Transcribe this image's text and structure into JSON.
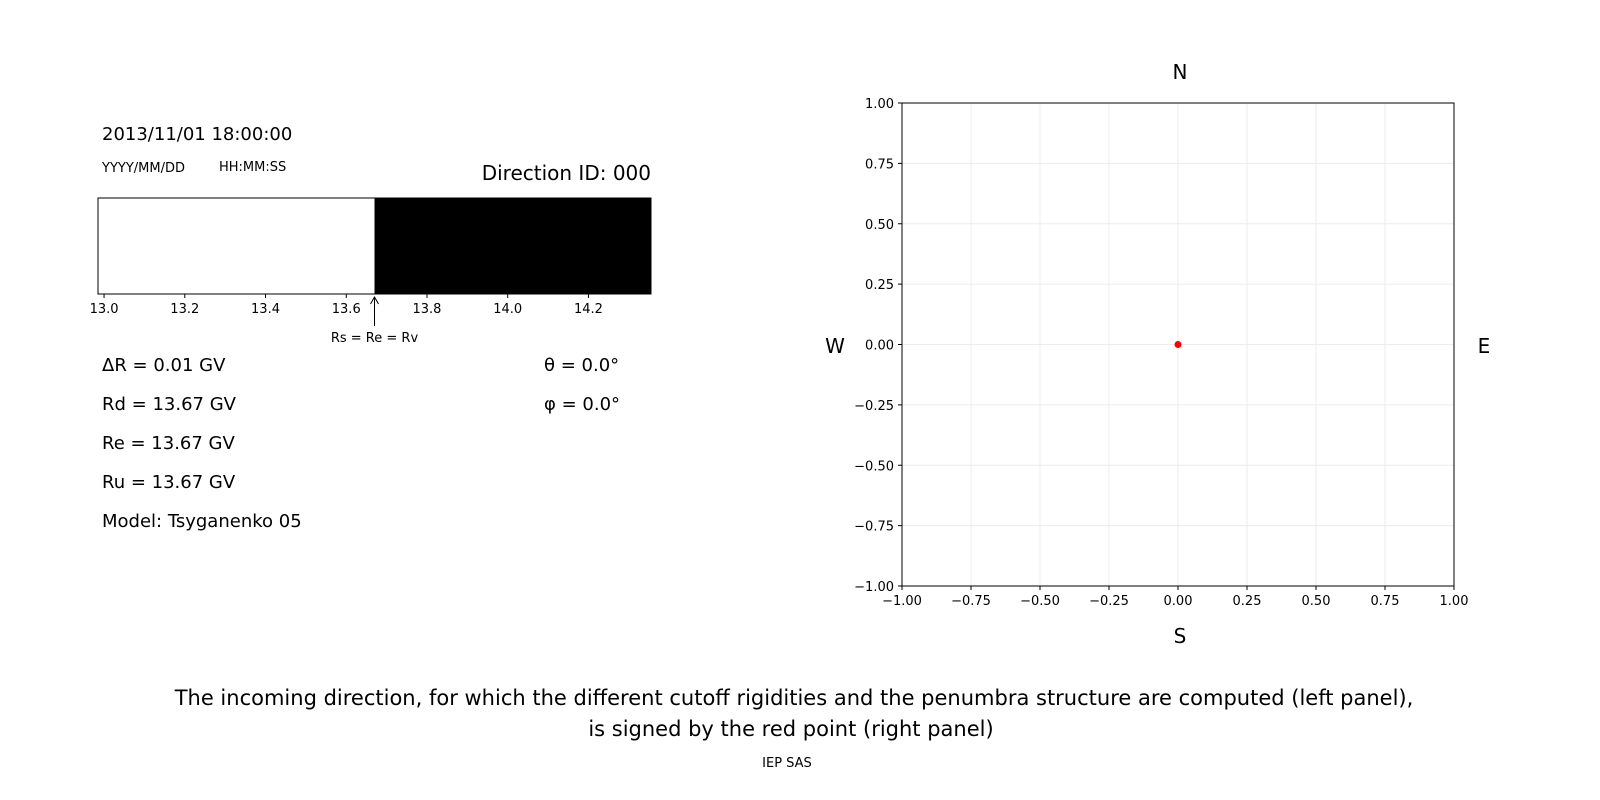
{
  "header": {
    "datetime": "2013/11/01 18:00:00",
    "date_format": "YYYY/MM/DD",
    "time_format": "HH:MM:SS",
    "direction_id": "Direction ID: 000"
  },
  "params": {
    "delta_r": "ΔR = 0.01 GV",
    "rd": "Rd = 13.67 GV",
    "re": "Re = 13.67 GV",
    "ru": "Ru = 13.67 GV",
    "model": "Model: Tsyganenko 05",
    "theta": "θ = 0.0°",
    "phi": "φ = 0.0°"
  },
  "chart_data": [
    {
      "type": "bar",
      "description_kind": "penumbra strip",
      "xlim": [
        12.985,
        14.355
      ],
      "xticks": [
        "13.0",
        "13.2",
        "13.4",
        "13.6",
        "13.8",
        "14.0",
        "14.2"
      ],
      "segments": [
        {
          "from": 12.985,
          "to": 13.67,
          "color": "#ffffff"
        },
        {
          "from": 13.67,
          "to": 14.355,
          "color": "#000000"
        }
      ],
      "annotation": {
        "x": 13.67,
        "text": "Rs = Re = Rv"
      }
    },
    {
      "type": "scatter",
      "xlim": [
        -1,
        1
      ],
      "ylim": [
        -1,
        1
      ],
      "xticks": [
        "−1.00",
        "−0.75",
        "−0.50",
        "−0.25",
        "0.00",
        "0.25",
        "0.50",
        "0.75",
        "1.00"
      ],
      "yticks": [
        "−1.00",
        "−0.75",
        "−0.50",
        "−0.25",
        "0.00",
        "0.25",
        "0.50",
        "0.75",
        "1.00"
      ],
      "grid": true,
      "points": [
        {
          "x": 0,
          "y": 0,
          "color": "#ff0000"
        }
      ],
      "labels": {
        "top": "N",
        "bottom": "S",
        "left": "W",
        "right": "E"
      }
    }
  ],
  "caption": {
    "line1": "The incoming direction, for which the different cutoff rigidities and the penumbra structure are computed (left panel),",
    "line2": "is signed by the red point (right panel)",
    "credit": "IEP SAS"
  }
}
